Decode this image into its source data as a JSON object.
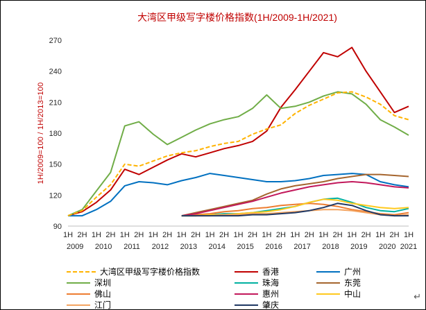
{
  "return_mark": "↵",
  "styles": {
    "title_color": "#C00000",
    "axis_color": "#BFBFBF",
    "tick_color": "#262626",
    "background": "#FFFFFF"
  },
  "chart_data": {
    "type": "line",
    "title": "大湾区甲级写字楼价格指数(1H/2009-1H/2021)",
    "ylabel": "1H/2009=100 / 1H/2013=100",
    "xlabel": "",
    "ylim": [
      90,
      270
    ],
    "yticks": [
      90,
      120,
      150,
      180,
      210,
      240,
      270
    ],
    "grid": false,
    "legend_position": "bottom",
    "categories": [
      "1H2009",
      "2H2009",
      "1H2010",
      "2H2010",
      "1H2011",
      "2H2011",
      "1H2012",
      "2H2012",
      "1H2013",
      "2H2013",
      "1H2014",
      "2H2014",
      "1H2015",
      "2H2015",
      "1H2016",
      "2H2016",
      "1H2017",
      "2H2017",
      "1H2018",
      "2H2018",
      "1H2019",
      "2H2019",
      "1H2020",
      "2H2020",
      "1H2021"
    ],
    "x_half_labels": [
      "1H",
      "2H",
      "1H",
      "2H",
      "1H",
      "2H",
      "1H",
      "2H",
      "1H",
      "2H",
      "1H",
      "2H",
      "1H",
      "2H",
      "1H",
      "2H",
      "1H",
      "2H",
      "1H",
      "2H",
      "1H",
      "2H",
      "1H",
      "2H",
      "1H"
    ],
    "x_year_labels": [
      "2009",
      "2010",
      "2011",
      "2012",
      "2013",
      "2014",
      "2015",
      "2016",
      "2017",
      "2018",
      "2019",
      "2020",
      "2021"
    ],
    "series": [
      {
        "name": "大湾区甲级写字楼价格指数",
        "color": "#FFB300",
        "dashed": true,
        "values": [
          100,
          105,
          118,
          130,
          150,
          148,
          153,
          158,
          161,
          163,
          167,
          170,
          172,
          179,
          184,
          188,
          199,
          207,
          213,
          219,
          220,
          215,
          208,
          197,
          193
        ]
      },
      {
        "name": "香港",
        "color": "#C00000",
        "dashed": false,
        "values": [
          100,
          104,
          113,
          125,
          145,
          140,
          147,
          154,
          160,
          157,
          161,
          165,
          168,
          172,
          182,
          205,
          222,
          240,
          258,
          254,
          263,
          240,
          220,
          200,
          206
        ]
      },
      {
        "name": "广州",
        "color": "#0070C0",
        "dashed": false,
        "values": [
          100,
          100,
          106,
          114,
          129,
          133,
          132,
          130,
          134,
          137,
          141,
          139,
          137,
          135,
          133,
          133,
          134,
          136,
          139,
          140,
          141,
          140,
          133,
          130,
          128
        ]
      },
      {
        "name": "深圳",
        "color": "#70AD47",
        "dashed": false,
        "values": [
          100,
          106,
          124,
          142,
          187,
          191,
          179,
          169,
          176,
          183,
          189,
          193,
          196,
          204,
          217,
          204,
          206,
          210,
          216,
          220,
          218,
          208,
          193,
          186,
          178
        ]
      },
      {
        "name": "珠海",
        "color": "#00B0A0",
        "dashed": false,
        "values": [
          null,
          null,
          null,
          null,
          null,
          null,
          null,
          null,
          100,
          100,
          101,
          102,
          102,
          103,
          105,
          107,
          109,
          113,
          116,
          117,
          113,
          108,
          105,
          104,
          107
        ]
      },
      {
        "name": "东莞",
        "color": "#A5652E",
        "dashed": false,
        "values": [
          null,
          null,
          null,
          null,
          null,
          null,
          null,
          null,
          100,
          103,
          106,
          109,
          112,
          115,
          121,
          126,
          129,
          131,
          133,
          136,
          138,
          140,
          140,
          139,
          138
        ]
      },
      {
        "name": "佛山",
        "color": "#ED7D31",
        "dashed": false,
        "values": [
          null,
          null,
          null,
          null,
          null,
          null,
          null,
          null,
          100,
          101,
          102,
          104,
          105,
          107,
          108,
          110,
          111,
          112,
          111,
          109,
          106,
          104,
          102,
          101,
          103
        ]
      },
      {
        "name": "惠州",
        "color": "#C2185B",
        "dashed": false,
        "values": [
          null,
          null,
          null,
          null,
          null,
          null,
          null,
          null,
          100,
          102,
          105,
          108,
          111,
          114,
          118,
          122,
          125,
          128,
          130,
          132,
          133,
          132,
          130,
          128,
          127
        ]
      },
      {
        "name": "中山",
        "color": "#FFC91E",
        "dashed": false,
        "values": [
          null,
          null,
          null,
          null,
          null,
          null,
          null,
          null,
          100,
          100,
          101,
          101,
          102,
          103,
          104,
          106,
          109,
          113,
          116,
          115,
          112,
          110,
          108,
          107,
          108
        ]
      },
      {
        "name": "江门",
        "color": "#F4A460",
        "dashed": false,
        "values": [
          null,
          null,
          null,
          null,
          null,
          null,
          null,
          null,
          100,
          100,
          100,
          101,
          101,
          102,
          102,
          103,
          104,
          105,
          106,
          106,
          105,
          103,
          101,
          100,
          101
        ]
      },
      {
        "name": "肇庆",
        "color": "#1F3864",
        "dashed": false,
        "values": [
          null,
          null,
          null,
          null,
          null,
          null,
          null,
          null,
          100,
          100,
          100,
          100,
          100,
          101,
          101,
          102,
          103,
          105,
          108,
          112,
          110,
          105,
          101,
          100,
          100
        ]
      }
    ]
  }
}
